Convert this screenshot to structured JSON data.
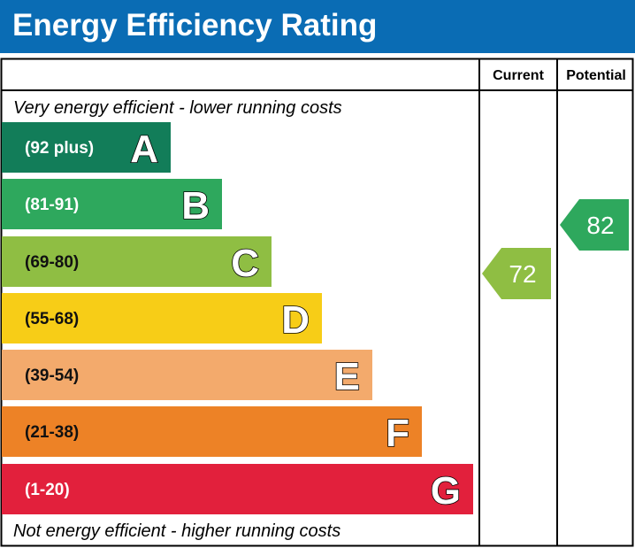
{
  "title": "Energy Efficiency Rating",
  "chart_data": {
    "type": "bar",
    "title": "Energy Efficiency Rating",
    "columns": [
      "Current",
      "Potential"
    ],
    "top_note": "Very energy efficient - lower running costs",
    "bottom_note": "Not energy efficient - higher running costs",
    "bands": [
      {
        "letter": "A",
        "range": "(92 plus)",
        "color": "#127d59"
      },
      {
        "letter": "B",
        "range": "(81-91)",
        "color": "#2ea85d"
      },
      {
        "letter": "C",
        "range": "(69-80)",
        "color": "#8fbe43"
      },
      {
        "letter": "D",
        "range": "(55-68)",
        "color": "#f7cd17"
      },
      {
        "letter": "E",
        "range": "(39-54)",
        "color": "#f3aa6c"
      },
      {
        "letter": "F",
        "range": "(21-38)",
        "color": "#ed8226"
      },
      {
        "letter": "G",
        "range": "(1-20)",
        "color": "#e2203c"
      }
    ],
    "current": {
      "value": 72,
      "band": "C",
      "color": "#8fbe43"
    },
    "potential": {
      "value": 82,
      "band": "B",
      "color": "#2ea85d"
    }
  }
}
